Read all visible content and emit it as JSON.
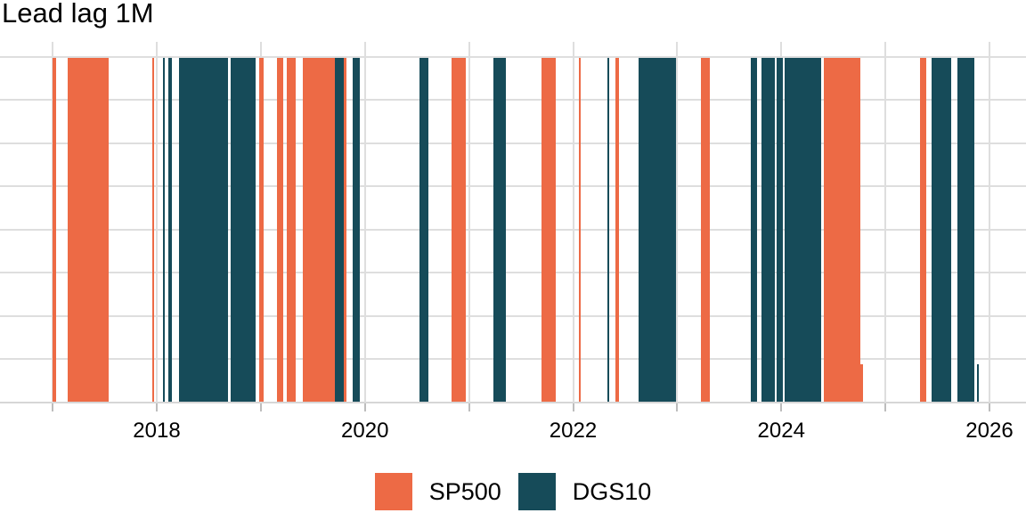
{
  "title": "Lead lag 1M",
  "colors": {
    "sp500": "#ED6A45",
    "dgs10": "#164B59",
    "gridline": "#DEDEDE",
    "axis_line": "#D6D6D6",
    "tick": "#BDBDBD",
    "text": "#000000",
    "background": "#FFFFFF"
  },
  "legend": [
    {
      "label": "SP500",
      "series": "SP500"
    },
    {
      "label": "DGS10",
      "series": "DGS10"
    }
  ],
  "chart_data": {
    "type": "bar",
    "subtype": "regime-timeline-vertical-bands",
    "title": "Lead lag 1M",
    "xlabel": "",
    "ylabel": "",
    "legend_position": "bottom-center",
    "grid": true,
    "x_axis": {
      "unit": "year",
      "range": [
        2016.49,
        2026.35
      ],
      "tick_years": [
        2017,
        2018,
        2019,
        2020,
        2021,
        2022,
        2023,
        2024,
        2025,
        2026
      ],
      "labeled_years": [
        2018,
        2020,
        2022,
        2024,
        2026
      ]
    },
    "y_axis": {
      "range": [
        0,
        1
      ],
      "gridline_step": 0.125,
      "labels_shown": false
    },
    "series_colors": {
      "SP500": "#ED6A45",
      "DGS10": "#164B59"
    },
    "segments": [
      {
        "series": "SP500",
        "start": 2017.003,
        "end": 2017.029,
        "h": 1
      },
      {
        "series": "SP500",
        "start": 2017.144,
        "end": 2017.542,
        "h": 1
      },
      {
        "series": "SP500",
        "start": 2017.953,
        "end": 2017.974,
        "h": 1
      },
      {
        "series": "DGS10",
        "start": 2018.06,
        "end": 2018.077,
        "h": 1
      },
      {
        "series": "DGS10",
        "start": 2018.107,
        "end": 2018.145,
        "h": 1
      },
      {
        "series": "DGS10",
        "start": 2018.214,
        "end": 2018.684,
        "h": 1
      },
      {
        "series": "DGS10",
        "start": 2018.714,
        "end": 2018.95,
        "h": 1
      },
      {
        "series": "SP500",
        "start": 2018.988,
        "end": 2019.031,
        "h": 1
      },
      {
        "series": "SP500",
        "start": 2019.159,
        "end": 2019.219,
        "h": 1
      },
      {
        "series": "SP500",
        "start": 2019.253,
        "end": 2019.335,
        "h": 1
      },
      {
        "series": "SP500",
        "start": 2019.403,
        "end": 2019.711,
        "h": 1
      },
      {
        "series": "DGS10",
        "start": 2019.711,
        "end": 2019.797,
        "h": 1
      },
      {
        "series": "SP500",
        "start": 2019.797,
        "end": 2019.826,
        "h": 1
      },
      {
        "series": "DGS10",
        "start": 2019.882,
        "end": 2019.951,
        "h": 1
      },
      {
        "series": "DGS10",
        "start": 2020.52,
        "end": 2020.61,
        "h": 1
      },
      {
        "series": "SP500",
        "start": 2020.836,
        "end": 2020.969,
        "h": 1
      },
      {
        "series": "DGS10",
        "start": 2021.234,
        "end": 2021.35,
        "h": 1
      },
      {
        "series": "SP500",
        "start": 2021.696,
        "end": 2021.829,
        "h": 1
      },
      {
        "series": "SP500",
        "start": 2022.056,
        "end": 2022.077,
        "h": 1
      },
      {
        "series": "DGS10",
        "start": 2022.329,
        "end": 2022.346,
        "h": 1
      },
      {
        "series": "SP500",
        "start": 2022.406,
        "end": 2022.445,
        "h": 1
      },
      {
        "series": "DGS10",
        "start": 2022.629,
        "end": 2022.988,
        "h": 1
      },
      {
        "series": "SP500",
        "start": 2023.224,
        "end": 2023.313,
        "h": 1
      },
      {
        "series": "DGS10",
        "start": 2023.707,
        "end": 2023.767,
        "h": 1
      },
      {
        "series": "DGS10",
        "start": 2023.81,
        "end": 2023.938,
        "h": 1
      },
      {
        "series": "DGS10",
        "start": 2023.959,
        "end": 2024.013,
        "h": 1
      },
      {
        "series": "DGS10",
        "start": 2024.03,
        "end": 2024.385,
        "h": 1
      },
      {
        "series": "SP500",
        "start": 2024.41,
        "end": 2024.761,
        "h": 1
      },
      {
        "series": "SP500",
        "start": 2024.761,
        "end": 2024.783,
        "h": 0.11
      },
      {
        "series": "SP500",
        "start": 2025.334,
        "end": 2025.394,
        "h": 1
      },
      {
        "series": "DGS10",
        "start": 2025.446,
        "end": 2025.634,
        "h": 1
      },
      {
        "series": "DGS10",
        "start": 2025.694,
        "end": 2025.856,
        "h": 1
      },
      {
        "series": "DGS10",
        "start": 2025.877,
        "end": 2025.899,
        "h": 0.11
      }
    ]
  }
}
